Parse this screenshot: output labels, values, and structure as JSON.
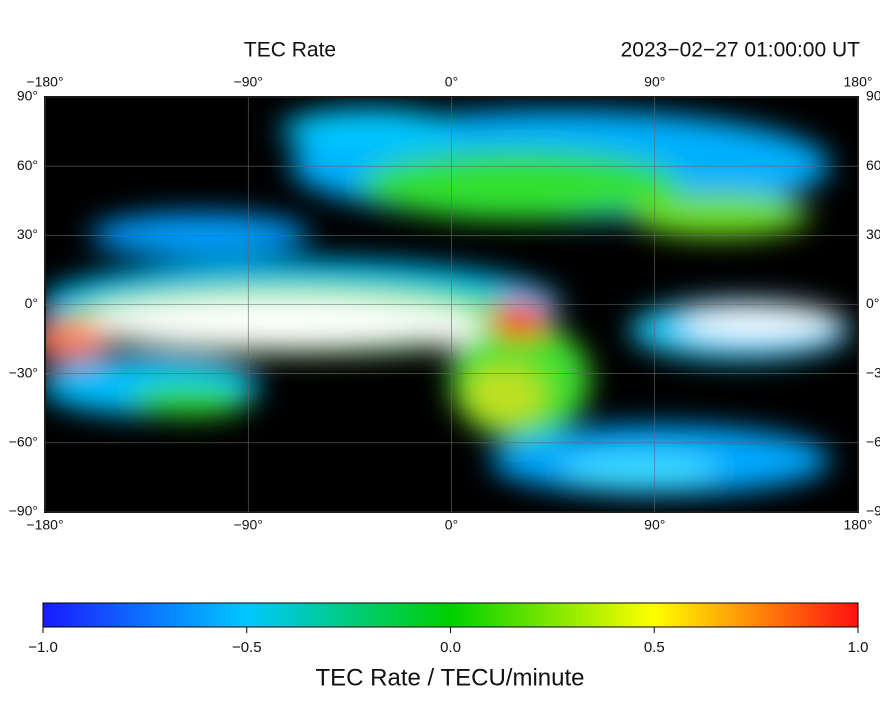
{
  "map": {
    "title": "TEC Rate",
    "timestamp": "2023−02−27  01:00:00 UT",
    "xlim": [
      -180,
      180
    ],
    "ylim": [
      -90,
      90
    ],
    "xticks": [
      {
        "value": -180,
        "label": "−180°"
      },
      {
        "value": -90,
        "label": "−90°"
      },
      {
        "value": 0,
        "label": "0°"
      },
      {
        "value": 90,
        "label": "90°"
      },
      {
        "value": 180,
        "label": "180°"
      }
    ],
    "yticks": [
      {
        "value": 90,
        "label": "90°"
      },
      {
        "value": 60,
        "label": "60°"
      },
      {
        "value": 30,
        "label": "30°"
      },
      {
        "value": 0,
        "label": "0°"
      },
      {
        "value": -30,
        "label": "−30°"
      },
      {
        "value": -60,
        "label": "−60°"
      },
      {
        "value": -90,
        "label": "−90°"
      }
    ]
  },
  "colorbar": {
    "lim": [
      -1,
      1
    ],
    "ticks": [
      {
        "value": -1,
        "label": "−1.0"
      },
      {
        "value": -0.5,
        "label": "−0.5"
      },
      {
        "value": 0,
        "label": "0.0"
      },
      {
        "value": 0.5,
        "label": "0.5"
      },
      {
        "value": 1,
        "label": "1.0"
      }
    ],
    "label": "TEC Rate / TECU/minute"
  }
}
